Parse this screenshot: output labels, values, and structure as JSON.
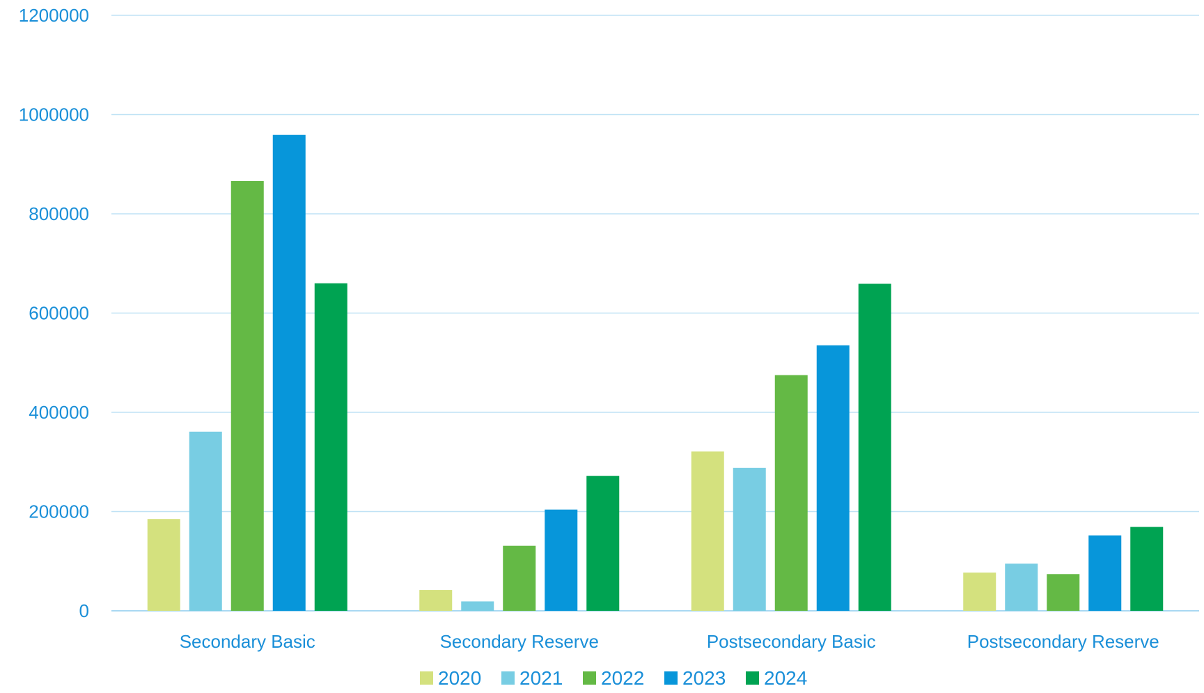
{
  "chart_data": {
    "type": "bar",
    "title": "",
    "xlabel": "",
    "ylabel": "",
    "categories": [
      "Secondary Basic",
      "Secondary Reserve",
      "Postsecondary Basic",
      "Postsecondary Reserve"
    ],
    "series": [
      {
        "name": "2020",
        "color": "#d4e17e",
        "values": [
          185000,
          42000,
          321000,
          77000
        ]
      },
      {
        "name": "2021",
        "color": "#78cde3",
        "values": [
          361000,
          19000,
          288000,
          95000
        ]
      },
      {
        "name": "2022",
        "color": "#64b945",
        "values": [
          866000,
          131000,
          475000,
          74000
        ]
      },
      {
        "name": "2023",
        "color": "#0796da",
        "values": [
          959000,
          204000,
          535000,
          152000
        ]
      },
      {
        "name": "2024",
        "color": "#00a352",
        "values": [
          660000,
          272000,
          659000,
          169000
        ]
      }
    ],
    "ylim": [
      0,
      1200000
    ],
    "yticks": [
      "0",
      "200000",
      "400000",
      "600000",
      "800000",
      "1000000",
      "1200000"
    ],
    "grid": true,
    "legend_position": "bottom",
    "colors": {
      "text": "#1a8fd8",
      "grid": "#bfe2f5",
      "axis": "#a9d8f2"
    }
  }
}
